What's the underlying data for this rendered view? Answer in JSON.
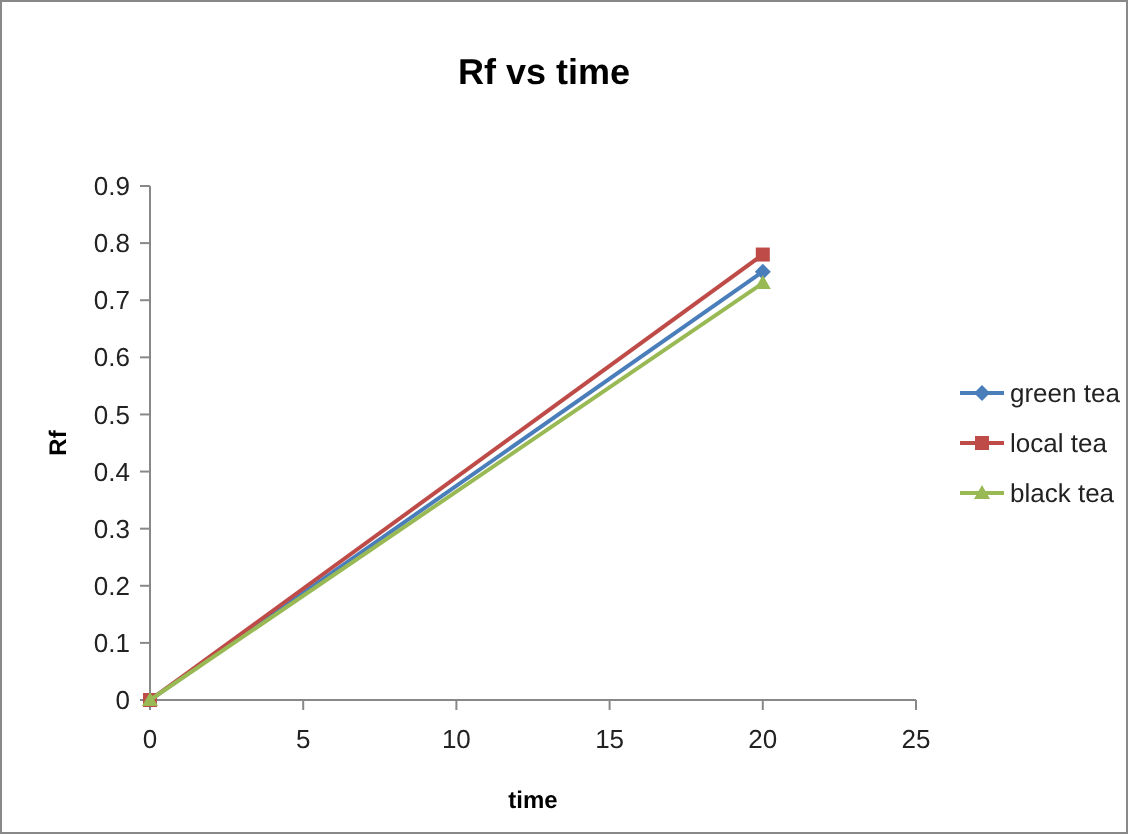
{
  "chart_data": {
    "type": "line",
    "title": "Rf  vs  time",
    "xlabel": "time",
    "ylabel": "Rf",
    "x": [
      0,
      20
    ],
    "series": [
      {
        "name": "green tea",
        "color": "#4a7ebb",
        "values": [
          0,
          0.75
        ],
        "marker": "diamond"
      },
      {
        "name": "local tea",
        "color": "#be4b48",
        "values": [
          0,
          0.78
        ],
        "marker": "square"
      },
      {
        "name": "black tea",
        "color": "#98b954",
        "values": [
          0,
          0.73
        ],
        "marker": "triangle"
      }
    ],
    "xlim": [
      0,
      25
    ],
    "xticks": [
      0,
      5,
      10,
      15,
      20,
      25
    ],
    "ylim": [
      0,
      0.9
    ],
    "yticks": [
      0,
      0.1,
      0.2,
      0.3,
      0.4,
      0.5,
      0.6,
      0.7,
      0.8,
      0.9
    ],
    "grid": false,
    "legend": "right"
  }
}
